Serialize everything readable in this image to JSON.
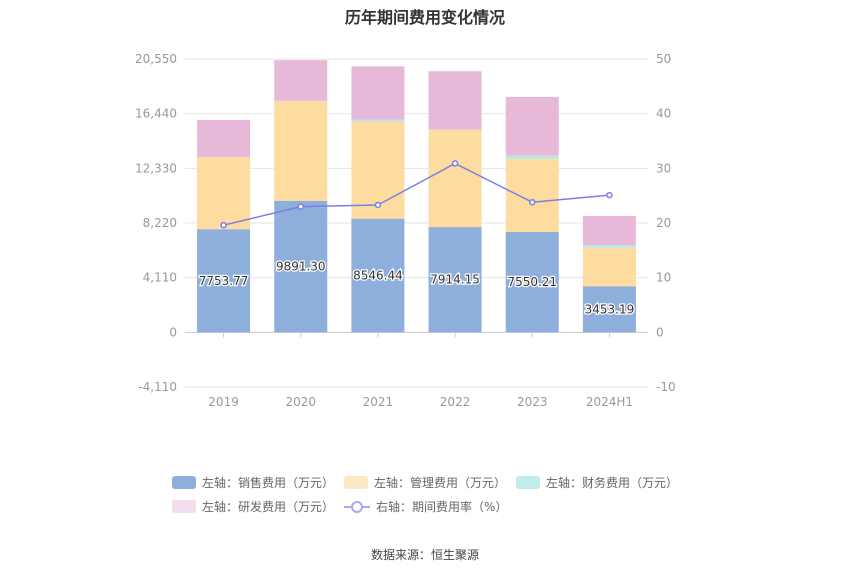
{
  "title": "历年期间费用变化情况",
  "source": "数据来源：恒生聚源",
  "colors": {
    "sales": "#8eaedb",
    "admin": "#fedb9e",
    "finance": "#b7e6e8",
    "rd": "#e8b8d9",
    "rate": "#7b7ee8",
    "grid": "#e6e6e6",
    "axis_text": "#999999"
  },
  "legend": [
    {
      "key": "sales",
      "label": "左轴：销售费用（万元）"
    },
    {
      "key": "admin",
      "label": "左轴：管理费用（万元）"
    },
    {
      "key": "finance",
      "label": "左轴：财务费用（万元）"
    },
    {
      "key": "rd",
      "label": "左轴：研发费用（万元）"
    },
    {
      "key": "rate",
      "label": "右轴：期间费用率（%）"
    }
  ],
  "chart_data": {
    "type": "bar",
    "stacked": true,
    "categories": [
      "2019",
      "2020",
      "2021",
      "2022",
      "2023",
      "2024H1"
    ],
    "series": [
      {
        "name": "左轴：销售费用（万元）",
        "key": "sales",
        "axis": "left",
        "values": [
          7753.77,
          9891.3,
          8546.44,
          7914.15,
          7550.21,
          3453.19
        ],
        "labels": [
          "7753.77",
          "9891.30",
          "8546.44",
          "7914.15",
          "7550.21",
          "3453.19"
        ]
      },
      {
        "name": "左轴：管理费用（万元）",
        "key": "admin",
        "axis": "left",
        "values": [
          5400,
          7500,
          7300,
          7300,
          5500,
          2900
        ]
      },
      {
        "name": "左轴：财务费用（万元）",
        "key": "finance",
        "axis": "left",
        "values": [
          20,
          20,
          150,
          20,
          250,
          200
        ]
      },
      {
        "name": "左轴：研发费用（万元）",
        "key": "rd",
        "axis": "left",
        "values": [
          2800,
          3050,
          4000,
          4400,
          4400,
          2200
        ]
      },
      {
        "name": "右轴：期间费用率（%）",
        "key": "rate",
        "axis": "right",
        "type": "line",
        "values": [
          19.6,
          23.0,
          23.3,
          30.9,
          23.8,
          25.1
        ]
      }
    ],
    "left_axis": {
      "ticks": [
        -4110,
        0,
        4110,
        8220,
        12330,
        16440,
        20550
      ],
      "tick_labels": [
        "-4,110",
        "0",
        "4,110",
        "8,220",
        "12,330",
        "16,440",
        "20,550"
      ],
      "ylim": [
        -4110,
        20550
      ]
    },
    "right_axis": {
      "ticks": [
        -10,
        0,
        10,
        20,
        30,
        40,
        50
      ],
      "tick_labels": [
        "-10",
        "0",
        "10",
        "20",
        "30",
        "40",
        "50"
      ],
      "ylim": [
        -10,
        50
      ]
    },
    "grid": true,
    "legend_position": "bottom"
  }
}
